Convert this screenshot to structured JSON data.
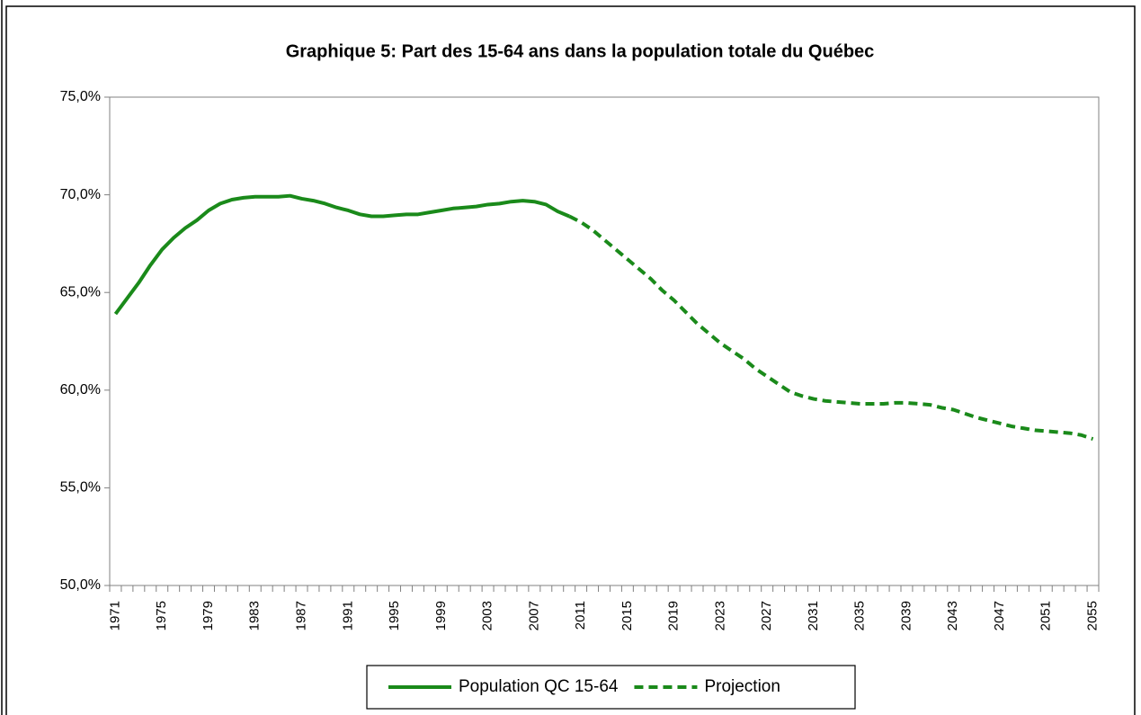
{
  "chart_data": {
    "type": "line",
    "title": "Graphique 5: Part des 15-64 ans dans la population totale du Québec",
    "categories": [
      "1971",
      null,
      null,
      null,
      "1975",
      null,
      null,
      null,
      "1979",
      null,
      null,
      null,
      "1983",
      null,
      null,
      null,
      "1987",
      null,
      null,
      null,
      "1991",
      null,
      null,
      null,
      "1995",
      null,
      null,
      null,
      "1999",
      null,
      null,
      null,
      "2003",
      null,
      null,
      null,
      "2007",
      null,
      null,
      null,
      "2011",
      null,
      null,
      null,
      "2015",
      null,
      null,
      null,
      "2019",
      null,
      null,
      null,
      "2023",
      null,
      null,
      null,
      "2027",
      null,
      null,
      null,
      "2031",
      null,
      null,
      null,
      "2035",
      null,
      null,
      null,
      "2039",
      null,
      null,
      null,
      "2043",
      null,
      null,
      null,
      "2047",
      null,
      null,
      null,
      "2051",
      null,
      null,
      null,
      "2055"
    ],
    "series": [
      {
        "name": "Population QC 15-64",
        "color": "#1a8a1a",
        "dashed": false,
        "values": [
          63.9,
          64.7,
          65.5,
          66.4,
          67.2,
          67.8,
          68.3,
          68.7,
          69.2,
          69.55,
          69.75,
          69.85,
          69.9,
          69.9,
          69.9,
          69.95,
          69.8,
          69.7,
          69.55,
          69.35,
          69.2,
          69.0,
          68.9,
          68.9,
          68.95,
          69.0,
          69.0,
          69.1,
          69.2,
          69.3,
          69.35,
          69.4,
          69.5,
          69.55,
          69.65,
          69.7,
          69.65,
          69.5,
          69.15,
          68.9,
          null,
          null,
          null,
          null,
          null,
          null,
          null,
          null,
          null,
          null,
          null,
          null,
          null,
          null,
          null,
          null,
          null,
          null,
          null,
          null,
          null,
          null,
          null,
          null,
          null,
          null,
          null,
          null,
          null,
          null,
          null,
          null,
          null,
          null,
          null,
          null,
          null,
          null,
          null,
          null,
          null,
          null,
          null,
          null,
          null
        ]
      },
      {
        "name": "Projection",
        "color": "#1a8a1a",
        "dashed": true,
        "values": [
          null,
          null,
          null,
          null,
          null,
          null,
          null,
          null,
          null,
          null,
          null,
          null,
          null,
          null,
          null,
          null,
          null,
          null,
          null,
          null,
          null,
          null,
          null,
          null,
          null,
          null,
          null,
          null,
          null,
          null,
          null,
          null,
          null,
          null,
          null,
          null,
          null,
          null,
          null,
          68.9,
          68.6,
          68.2,
          67.7,
          67.2,
          66.7,
          66.2,
          65.7,
          65.1,
          64.6,
          64.0,
          63.4,
          62.9,
          62.4,
          62.0,
          61.6,
          61.1,
          60.7,
          60.3,
          59.9,
          59.7,
          59.55,
          59.45,
          59.4,
          59.35,
          59.3,
          59.3,
          59.3,
          59.35,
          59.35,
          59.3,
          59.25,
          59.1,
          59.0,
          58.8,
          58.6,
          58.45,
          58.3,
          58.15,
          58.05,
          57.95,
          57.9,
          57.85,
          57.8,
          57.7,
          57.5
        ]
      }
    ],
    "ylim": [
      50,
      75
    ],
    "yticks": [
      {
        "value": 50,
        "label": "50,0%"
      },
      {
        "value": 55,
        "label": "55,0%"
      },
      {
        "value": 60,
        "label": "60,0%"
      },
      {
        "value": 65,
        "label": "65,0%"
      },
      {
        "value": 70,
        "label": "70,0%"
      },
      {
        "value": 75,
        "label": "75,0%"
      }
    ],
    "grid": false,
    "legend": "bottom"
  }
}
